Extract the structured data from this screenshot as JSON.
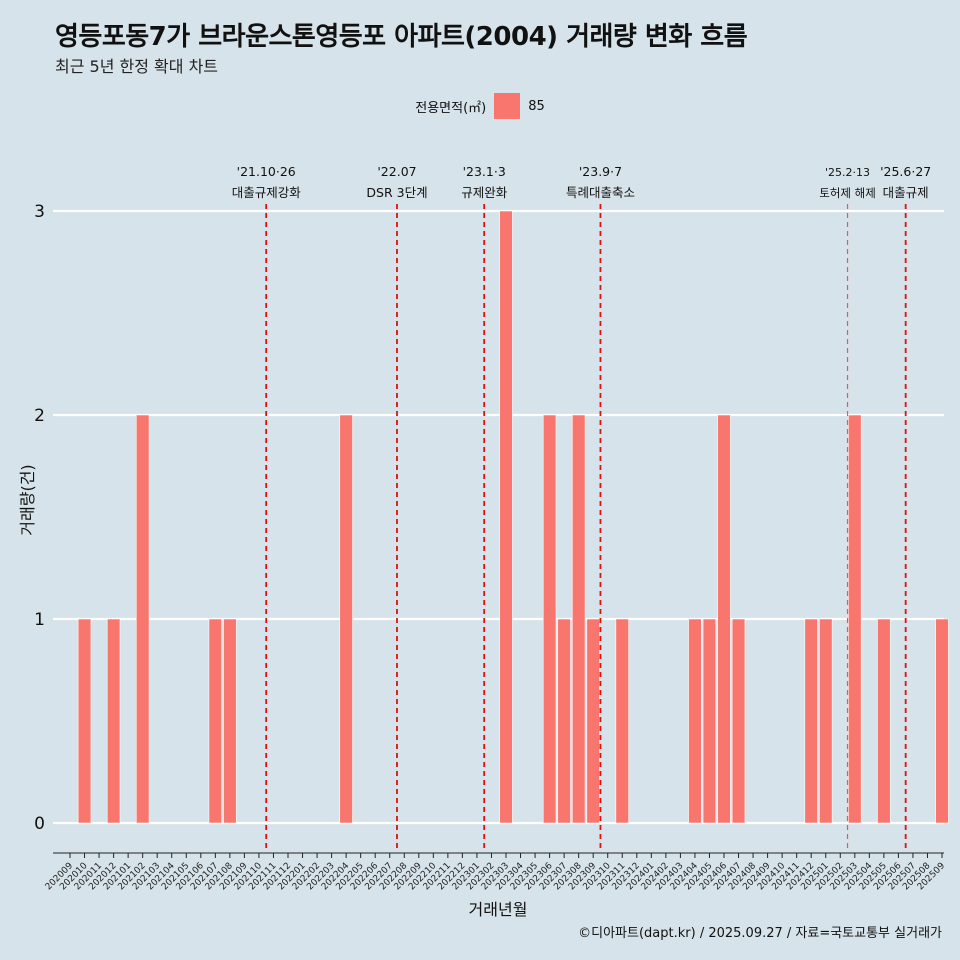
{
  "title": "영등포동7가 브라운스톤영등포 아파트(2004) 거래량 변화 흐름",
  "subtitle": "최근 5년 한정 확대 차트",
  "legend": {
    "title": "전용면적(㎡)",
    "items": [
      "85"
    ],
    "color": "#f8766d"
  },
  "caption": "©디아파트(dapt.kr) / 2025.09.27 / 자료=국토교통부 실거래가",
  "chart_data": {
    "type": "bar",
    "title": "영등포동7가 브라운스톤영등포 아파트(2004) 거래량 변화 흐름",
    "xlabel": "거래년월",
    "ylabel": "거래량(건)",
    "ylim": [
      0,
      3
    ],
    "yticks": [
      0,
      1,
      2,
      3
    ],
    "bar_color": "#f8766d",
    "categories": [
      "202009",
      "202010",
      "202011",
      "202012",
      "202101",
      "202102",
      "202103",
      "202104",
      "202105",
      "202106",
      "202107",
      "202108",
      "202109",
      "202110",
      "202111",
      "202112",
      "202201",
      "202202",
      "202203",
      "202204",
      "202205",
      "202206",
      "202207",
      "202208",
      "202209",
      "202210",
      "202211",
      "202212",
      "202301",
      "202302",
      "202303",
      "202304",
      "202305",
      "202306",
      "202307",
      "202308",
      "202309",
      "202310",
      "202311",
      "202312",
      "202401",
      "202402",
      "202403",
      "202404",
      "202405",
      "202406",
      "202407",
      "202408",
      "202409",
      "202410",
      "202411",
      "202412",
      "202501",
      "202502",
      "202503",
      "202504",
      "202505",
      "202506",
      "202507",
      "202508",
      "202509"
    ],
    "series": [
      {
        "name": "85",
        "values": [
          0,
          1,
          0,
          1,
          0,
          2,
          0,
          0,
          0,
          0,
          1,
          1,
          0,
          0,
          0,
          0,
          0,
          0,
          0,
          2,
          0,
          0,
          0,
          0,
          0,
          0,
          0,
          0,
          0,
          0,
          3,
          0,
          0,
          2,
          1,
          2,
          1,
          0,
          1,
          0,
          0,
          0,
          0,
          1,
          1,
          2,
          1,
          0,
          0,
          0,
          0,
          1,
          1,
          0,
          2,
          0,
          1,
          0,
          0,
          0,
          1
        ]
      }
    ],
    "annotations": [
      {
        "month": "202110",
        "date": "'21.10·26",
        "label": "대출규제강화",
        "style": "bold"
      },
      {
        "month": "202207",
        "date": "'22.07",
        "label": "DSR 3단계",
        "style": "bold"
      },
      {
        "month": "202301",
        "date": "'23.1·3",
        "label": "규제완화",
        "style": "bold"
      },
      {
        "month": "202309",
        "date": "'23.9·7",
        "label": "특례대출축소",
        "style": "bold"
      },
      {
        "month": "202502",
        "date": "'25.2·13",
        "label": "토허제 해제",
        "style": "thin"
      },
      {
        "month": "202506",
        "date": "'25.6·27",
        "label": "대출규제",
        "style": "bold"
      }
    ]
  }
}
